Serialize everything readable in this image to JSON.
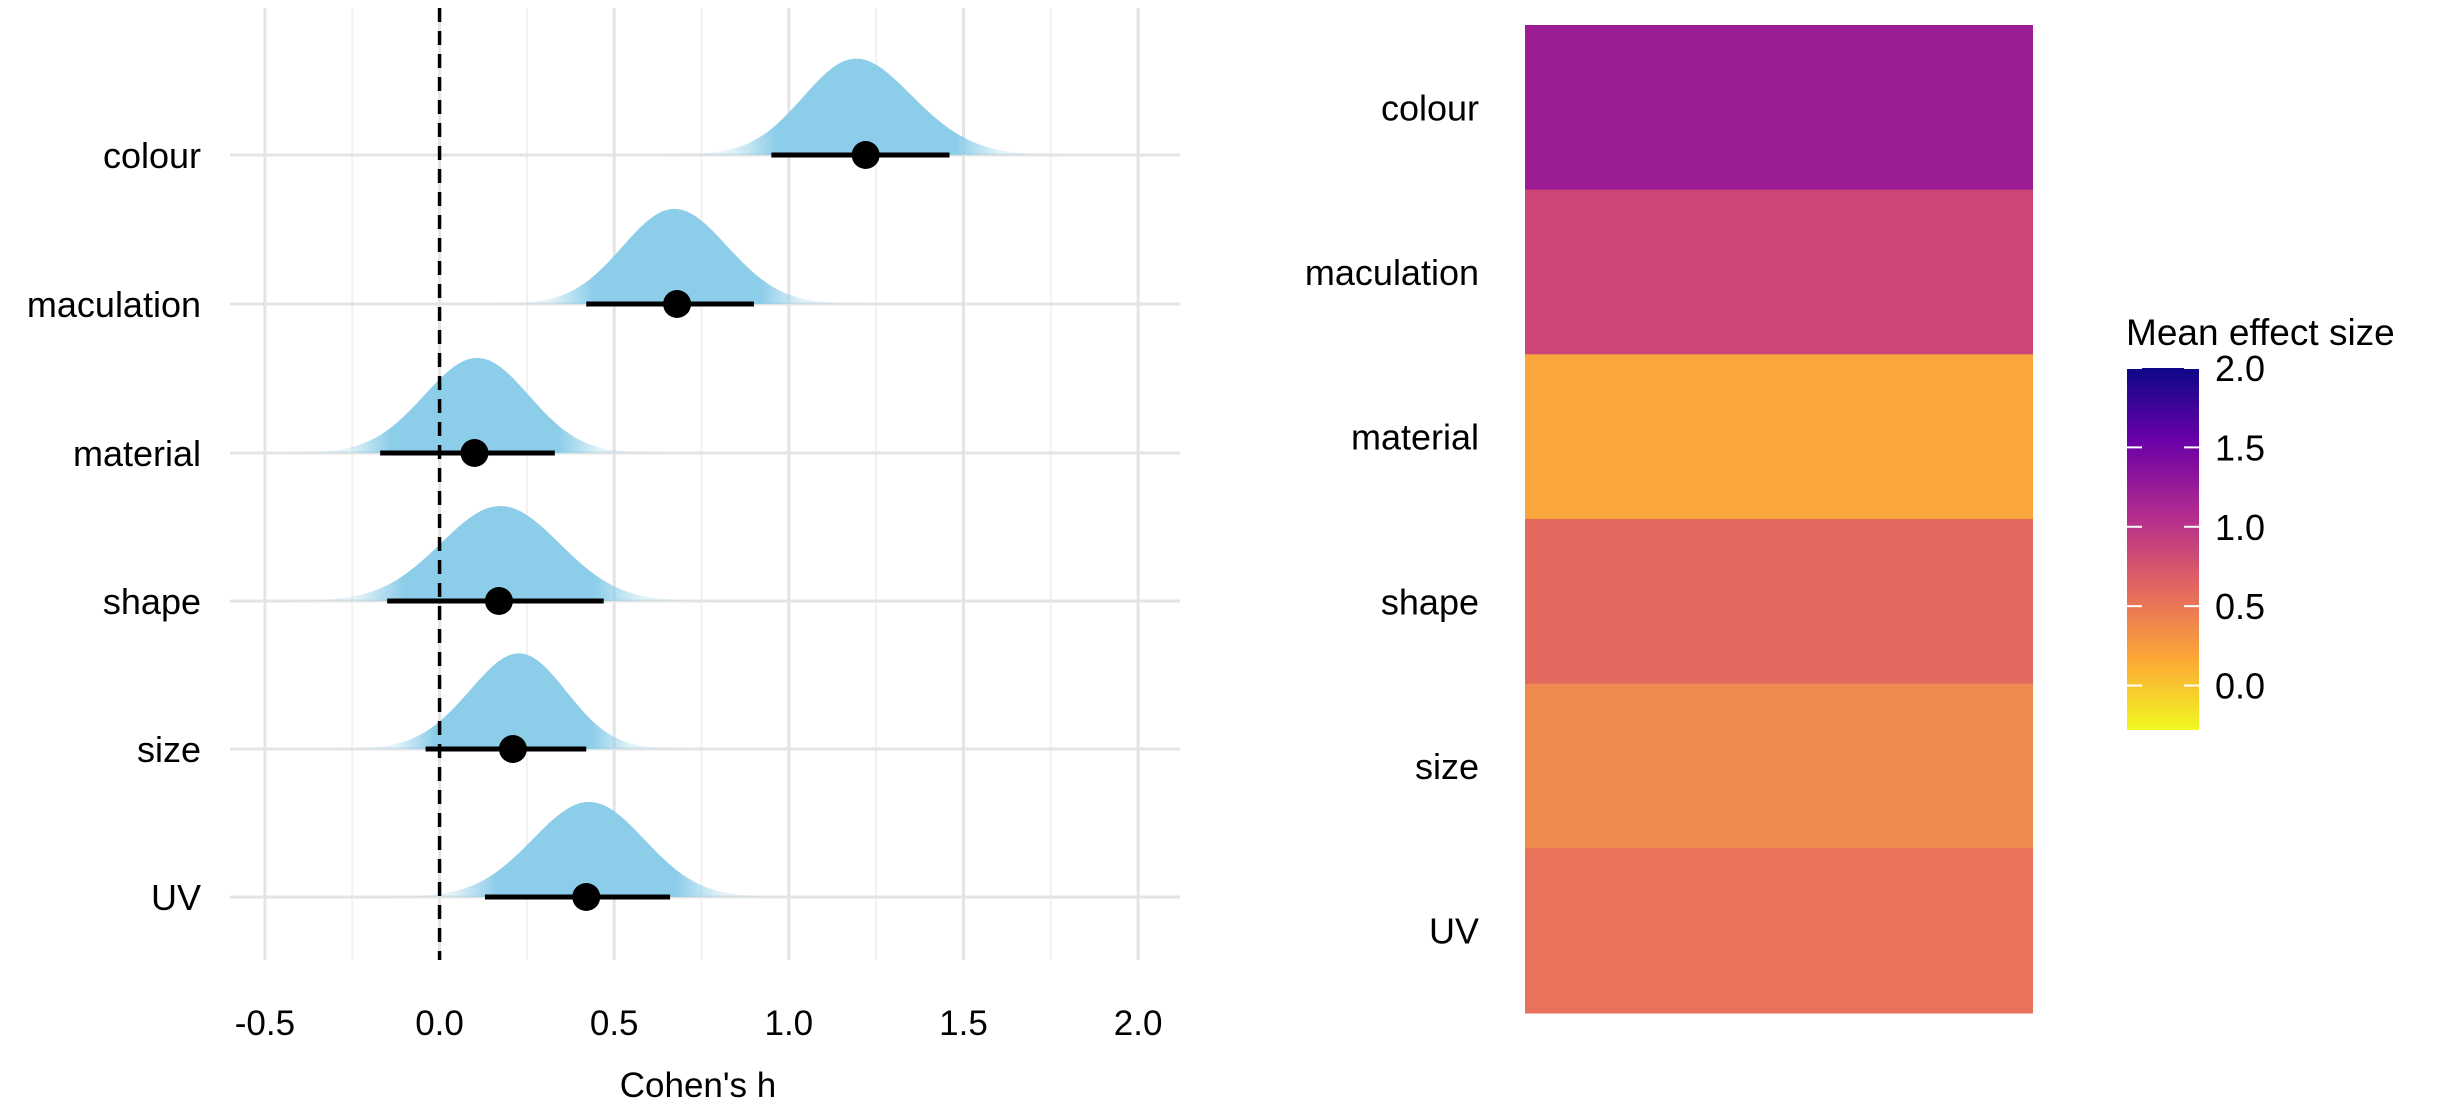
{
  "chart_data": [
    {
      "type": "scatter",
      "subtype": "halfeye-interval",
      "title": "",
      "xlabel": "Cohen's h",
      "ylabel": "",
      "xlim": [
        -0.6,
        2.12
      ],
      "x_ticks": [
        -0.5,
        0.0,
        0.5,
        1.0,
        1.5,
        2.0
      ],
      "x_tick_labels": [
        "-0.5",
        "0.0",
        "0.5",
        "1.0",
        "1.5",
        "2.0"
      ],
      "reference_line_x": 0,
      "grid": true,
      "density_color": "#8ccde9",
      "point_color": "#000000",
      "categories": [
        "colour",
        "maculation",
        "material",
        "shape",
        "size",
        "UV"
      ],
      "estimates": [
        {
          "category": "colour",
          "mean": 1.22,
          "lower": 0.95,
          "upper": 1.46,
          "dist_sd": 0.16,
          "dist_skew": -0.35
        },
        {
          "category": "maculation",
          "mean": 0.68,
          "lower": 0.42,
          "upper": 0.9,
          "dist_sd": 0.15,
          "dist_skew": -0.1
        },
        {
          "category": "material",
          "mean": 0.1,
          "lower": -0.17,
          "upper": 0.33,
          "dist_sd": 0.15,
          "dist_skew": 0.1
        },
        {
          "category": "shape",
          "mean": 0.17,
          "lower": -0.15,
          "upper": 0.47,
          "dist_sd": 0.17,
          "dist_skew": 0.05
        },
        {
          "category": "size",
          "mean": 0.21,
          "lower": -0.04,
          "upper": 0.42,
          "dist_sd": 0.14,
          "dist_skew": 0.25
        },
        {
          "category": "UV",
          "mean": 0.42,
          "lower": 0.13,
          "upper": 0.66,
          "dist_sd": 0.16,
          "dist_skew": 0.1
        }
      ]
    },
    {
      "type": "heatmap",
      "title": "",
      "categories": [
        "colour",
        "maculation",
        "material",
        "shape",
        "size",
        "UV"
      ],
      "values": [
        1.22,
        0.68,
        0.1,
        0.17,
        0.21,
        0.42
      ],
      "cell_colors": [
        "#9c1d93",
        "#cc4778",
        "#f9a73c",
        "#e3685d",
        "#ee8a4f",
        "#e8735a"
      ],
      "legend": {
        "title": "Mean effect size",
        "placement": "right",
        "ticks": [
          2.0,
          1.5,
          1.0,
          0.5,
          0.0
        ],
        "tick_labels": [
          "2.0",
          "1.5",
          "1.0",
          "0.5",
          "0.0"
        ],
        "range": [
          -0.28,
          2.0
        ],
        "gradient": [
          "#0d0887",
          "#6a00a8",
          "#b12a90",
          "#e16462",
          "#fca636",
          "#f0f921"
        ]
      }
    }
  ]
}
